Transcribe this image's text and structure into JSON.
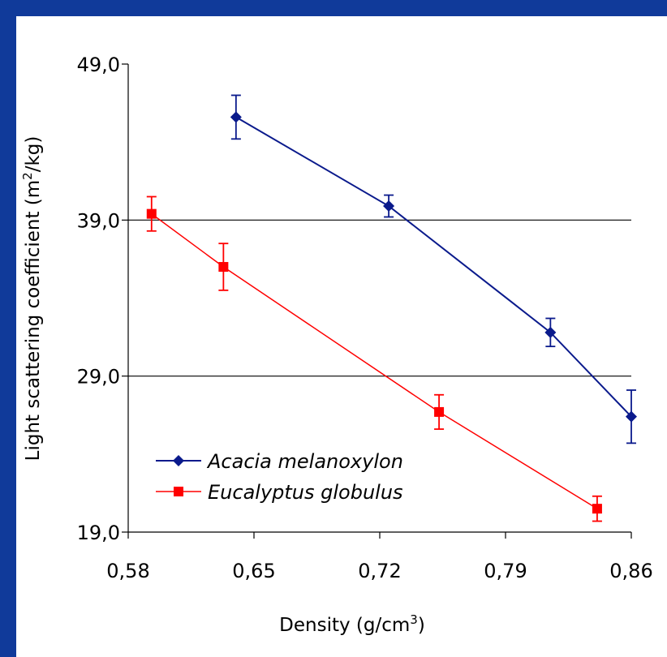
{
  "chart_data": {
    "type": "line",
    "title": "",
    "xlabel": "Density (g/cm",
    "xlabel_sup": "3",
    "xlabel_end": ")",
    "ylabel": "Light scattering coefficient (m",
    "ylabel_sup": "2",
    "ylabel_end": "/kg)",
    "xlim": [
      0.58,
      0.86
    ],
    "ylim": [
      19.0,
      49.0
    ],
    "xticks": [
      0.58,
      0.65,
      0.72,
      0.79,
      0.86
    ],
    "xtick_labels": [
      "0,58",
      "0,65",
      "0,72",
      "0,79",
      "0,86"
    ],
    "yticks": [
      19.0,
      29.0,
      39.0,
      49.0
    ],
    "ytick_labels": [
      "19,0",
      "29,0",
      "39,0",
      "49,0"
    ],
    "grid": "horizontal at 29,0 and 39,0",
    "legend_position": "bottom-left",
    "series": [
      {
        "name": "Acacia melanoxylon",
        "color": "#0a1a8c",
        "marker": "diamond",
        "x": [
          0.64,
          0.725,
          0.815,
          0.86
        ],
        "y": [
          45.6,
          39.9,
          31.8,
          26.4
        ],
        "err": [
          1.4,
          0.7,
          0.9,
          1.7
        ]
      },
      {
        "name": "Eucalyptus globulus",
        "color": "#ff0000",
        "marker": "square",
        "x": [
          0.593,
          0.633,
          0.753,
          0.841
        ],
        "y": [
          39.4,
          36.0,
          26.7,
          20.5
        ],
        "err": [
          1.1,
          1.5,
          1.1,
          0.8
        ]
      }
    ]
  }
}
